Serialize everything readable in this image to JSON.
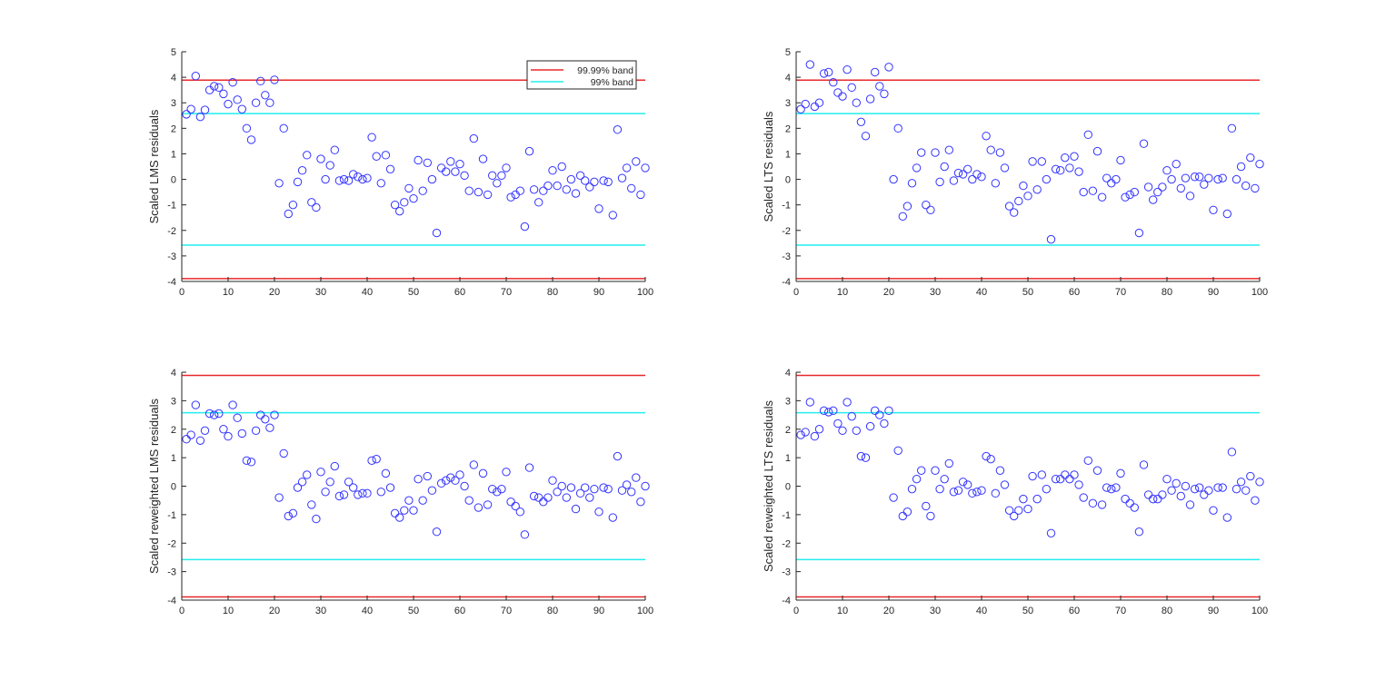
{
  "chart_data": [
    {
      "type": "scatter",
      "ylabel": "Scaled LMS residuals",
      "xlim": [
        0,
        100
      ],
      "ylim": [
        -4,
        5
      ],
      "xticks": [
        "0",
        "10",
        "20",
        "30",
        "40",
        "50",
        "60",
        "70",
        "80",
        "90",
        "100"
      ],
      "yticks": [
        "-4",
        "-3",
        "-2",
        "-1",
        "0",
        "1",
        "2",
        "3",
        "4",
        "5"
      ],
      "bands": {
        "band_9999": 3.89,
        "band_99": 2.576
      },
      "legend": {
        "placement": "top-right",
        "entries": [
          "99.99% band",
          "99% band"
        ]
      },
      "values": [
        2.55,
        2.75,
        4.05,
        2.45,
        2.72,
        3.5,
        3.65,
        3.6,
        3.35,
        2.95,
        3.8,
        3.12,
        2.75,
        2.0,
        1.55,
        3.0,
        3.85,
        3.3,
        3.0,
        3.9,
        -0.15,
        2.0,
        -1.35,
        -1.0,
        -0.1,
        0.35,
        0.95,
        -0.9,
        -1.1,
        0.8,
        0.0,
        0.55,
        1.15,
        -0.05,
        0.0,
        -0.05,
        0.2,
        0.1,
        0.0,
        0.05,
        1.65,
        0.9,
        -0.15,
        0.95,
        0.4,
        -1.0,
        -1.25,
        -0.9,
        -0.35,
        -0.75,
        0.75,
        -0.45,
        0.65,
        0.0,
        -2.1,
        0.45,
        0.3,
        0.7,
        0.3,
        0.6,
        0.15,
        -0.45,
        1.6,
        -0.5,
        0.8,
        -0.6,
        0.15,
        -0.15,
        0.15,
        0.45,
        -0.7,
        -0.6,
        -0.45,
        -1.85,
        1.1,
        -0.4,
        -0.9,
        -0.45,
        -0.25,
        0.35,
        -0.25,
        0.5,
        -0.4,
        0.0,
        -0.55,
        0.15,
        -0.05,
        -0.3,
        -0.1,
        -1.15,
        -0.05,
        -0.1,
        -1.4,
        1.95,
        0.05,
        0.45,
        -0.35,
        0.7,
        -0.6,
        0.45
      ]
    },
    {
      "type": "scatter",
      "ylabel": "Scaled LTS residuals",
      "xlim": [
        0,
        100
      ],
      "ylim": [
        -4,
        5
      ],
      "xticks": [
        "0",
        "10",
        "20",
        "30",
        "40",
        "50",
        "60",
        "70",
        "80",
        "90",
        "100"
      ],
      "yticks": [
        "-4",
        "-3",
        "-2",
        "-1",
        "0",
        "1",
        "2",
        "3",
        "4",
        "5"
      ],
      "bands": {
        "band_9999": 3.89,
        "band_99": 2.576
      },
      "values": [
        2.75,
        2.95,
        4.5,
        2.85,
        3.0,
        4.15,
        4.2,
        3.8,
        3.4,
        3.25,
        4.3,
        3.6,
        3.0,
        2.25,
        1.7,
        3.15,
        4.2,
        3.65,
        3.35,
        4.4,
        0.0,
        2.0,
        -1.45,
        -1.05,
        -0.15,
        0.45,
        1.05,
        -1.0,
        -1.2,
        1.05,
        -0.1,
        0.5,
        1.15,
        -0.05,
        0.25,
        0.2,
        0.4,
        0.0,
        0.2,
        0.1,
        1.7,
        1.15,
        -0.15,
        1.05,
        0.45,
        -1.05,
        -1.3,
        -0.85,
        -0.25,
        -0.65,
        0.7,
        -0.4,
        0.7,
        0.0,
        -2.35,
        0.4,
        0.35,
        0.85,
        0.45,
        0.9,
        0.3,
        -0.5,
        1.75,
        -0.45,
        1.1,
        -0.7,
        0.05,
        -0.15,
        0.0,
        0.75,
        -0.7,
        -0.6,
        -0.5,
        -2.1,
        1.4,
        -0.3,
        -0.8,
        -0.5,
        -0.3,
        0.35,
        0.0,
        0.6,
        -0.35,
        0.05,
        -0.65,
        0.1,
        0.1,
        -0.2,
        0.05,
        -1.2,
        0.0,
        0.05,
        -1.35,
        2.0,
        0.0,
        0.5,
        -0.25,
        0.85,
        -0.35,
        0.6
      ]
    },
    {
      "type": "scatter",
      "ylabel": "Scaled reweighted LMS residuals",
      "xlim": [
        0,
        100
      ],
      "ylim": [
        -4,
        4
      ],
      "xticks": [
        "0",
        "10",
        "20",
        "30",
        "40",
        "50",
        "60",
        "70",
        "80",
        "90",
        "100"
      ],
      "yticks": [
        "-4",
        "-3",
        "-2",
        "-1",
        "0",
        "1",
        "2",
        "3",
        "4"
      ],
      "bands": {
        "band_9999": 3.89,
        "band_99": 2.576
      },
      "values": [
        1.65,
        1.8,
        2.85,
        1.6,
        1.95,
        2.55,
        2.5,
        2.55,
        2.0,
        1.75,
        2.85,
        2.4,
        1.85,
        0.9,
        0.85,
        1.95,
        2.5,
        2.35,
        2.05,
        2.5,
        -0.4,
        1.15,
        -1.05,
        -0.95,
        -0.05,
        0.15,
        0.4,
        -0.65,
        -1.15,
        0.5,
        -0.2,
        0.15,
        0.7,
        -0.35,
        -0.3,
        0.15,
        -0.05,
        -0.3,
        -0.25,
        -0.25,
        0.9,
        0.95,
        -0.2,
        0.45,
        -0.05,
        -0.95,
        -1.1,
        -0.85,
        -0.5,
        -0.85,
        0.25,
        -0.5,
        0.35,
        -0.15,
        -1.6,
        0.1,
        0.2,
        0.3,
        0.2,
        0.4,
        0.0,
        -0.5,
        0.75,
        -0.75,
        0.45,
        -0.65,
        -0.1,
        -0.2,
        -0.1,
        0.5,
        -0.55,
        -0.7,
        -0.9,
        -1.7,
        0.65,
        -0.35,
        -0.4,
        -0.55,
        -0.4,
        0.2,
        -0.2,
        0.0,
        -0.4,
        -0.05,
        -0.8,
        -0.25,
        -0.05,
        -0.4,
        -0.1,
        -0.9,
        -0.05,
        -0.1,
        -1.1,
        1.05,
        -0.15,
        0.05,
        -0.2,
        0.3,
        -0.55,
        0.0
      ]
    },
    {
      "type": "scatter",
      "ylabel": "Scaled reweighted LTS residuals",
      "xlim": [
        0,
        100
      ],
      "ylim": [
        -4,
        4
      ],
      "xticks": [
        "0",
        "10",
        "20",
        "30",
        "40",
        "50",
        "60",
        "70",
        "80",
        "90",
        "100"
      ],
      "yticks": [
        "-4",
        "-3",
        "-2",
        "-1",
        "0",
        "1",
        "2",
        "3",
        "4"
      ],
      "bands": {
        "band_9999": 3.89,
        "band_99": 2.576
      },
      "values": [
        1.8,
        1.9,
        2.95,
        1.75,
        2.0,
        2.65,
        2.6,
        2.65,
        2.2,
        1.95,
        2.95,
        2.45,
        1.95,
        1.05,
        1.0,
        2.1,
        2.65,
        2.5,
        2.2,
        2.65,
        -0.4,
        1.25,
        -1.05,
        -0.9,
        -0.1,
        0.25,
        0.55,
        -0.7,
        -1.05,
        0.55,
        -0.1,
        0.25,
        0.8,
        -0.2,
        -0.15,
        0.15,
        0.05,
        -0.25,
        -0.2,
        -0.15,
        1.05,
        0.95,
        -0.25,
        0.55,
        0.05,
        -0.85,
        -1.05,
        -0.85,
        -0.45,
        -0.8,
        0.35,
        -0.45,
        0.4,
        -0.1,
        -1.65,
        0.25,
        0.25,
        0.4,
        0.25,
        0.4,
        0.05,
        -0.4,
        0.9,
        -0.6,
        0.55,
        -0.65,
        -0.05,
        -0.1,
        -0.05,
        0.45,
        -0.45,
        -0.6,
        -0.75,
        -1.6,
        0.75,
        -0.3,
        -0.45,
        -0.45,
        -0.3,
        0.25,
        -0.15,
        0.1,
        -0.35,
        0.0,
        -0.65,
        -0.1,
        -0.05,
        -0.3,
        -0.15,
        -0.85,
        -0.05,
        -0.05,
        -1.1,
        1.2,
        -0.1,
        0.15,
        -0.15,
        0.35,
        -0.5,
        0.15
      ]
    }
  ],
  "colors": {
    "points": "#3333ff",
    "band_9999": "#e8282a",
    "band_99": "#22eeee",
    "axis": "#262626"
  }
}
